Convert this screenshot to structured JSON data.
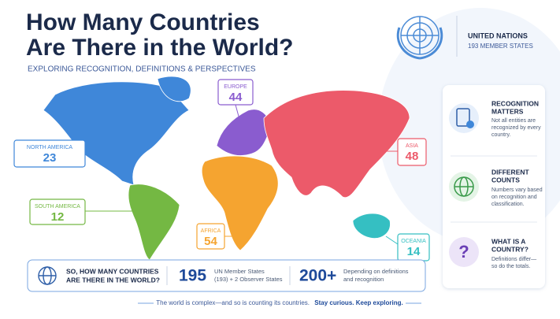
{
  "header": {
    "title_lines": [
      "How Many Countries",
      "Are There in the World?"
    ],
    "subtitle": "EXPLORING RECOGNITION, DEFINITIONS & PERSPECTIVES"
  },
  "un": {
    "name": "UNITED NATIONS",
    "members": "193 MEMBER STATES"
  },
  "regions": [
    {
      "name": "NORTH AMERICA",
      "count": 23,
      "color": "#3f87d9"
    },
    {
      "name": "SOUTH AMERICA",
      "count": 12,
      "color": "#74b843"
    },
    {
      "name": "EUROPE",
      "count": 44,
      "color": "#8a5ccf"
    },
    {
      "name": "AFRICA",
      "count": 54,
      "color": "#f5a430"
    },
    {
      "name": "ASIA",
      "count": 48,
      "color": "#ec5a6a"
    },
    {
      "name": "OCEANIA",
      "count": 14,
      "color": "#35bfc2"
    }
  ],
  "cards": [
    {
      "title_lines": [
        "RECOGNITION",
        "MATTERS"
      ],
      "text_lines": [
        "Not all entities are",
        "recognized by every",
        "country."
      ]
    },
    {
      "title_lines": [
        "DIFFERENT",
        "COUNTS"
      ],
      "text_lines": [
        "Numbers vary based",
        "on recognition and",
        "classification."
      ]
    },
    {
      "title_lines": [
        "WHAT IS A",
        "COUNTRY?"
      ],
      "text_lines": [
        "Definitions differ—",
        "so do the totals."
      ]
    }
  ],
  "summary": {
    "question_lines": [
      "SO, HOW MANY COUNTRIES",
      "ARE THERE IN THE WORLD?"
    ],
    "stats": [
      {
        "value": 195,
        "label_lines": [
          "UN Member States",
          "(193) + 2 Observer States"
        ]
      },
      {
        "value": "200+",
        "label_lines": [
          "Depending on definitions",
          "and recognition"
        ]
      }
    ]
  },
  "footer": {
    "text": "The world is complex—and so is counting its countries.",
    "emphasis": "Stay curious. Keep exploring."
  }
}
